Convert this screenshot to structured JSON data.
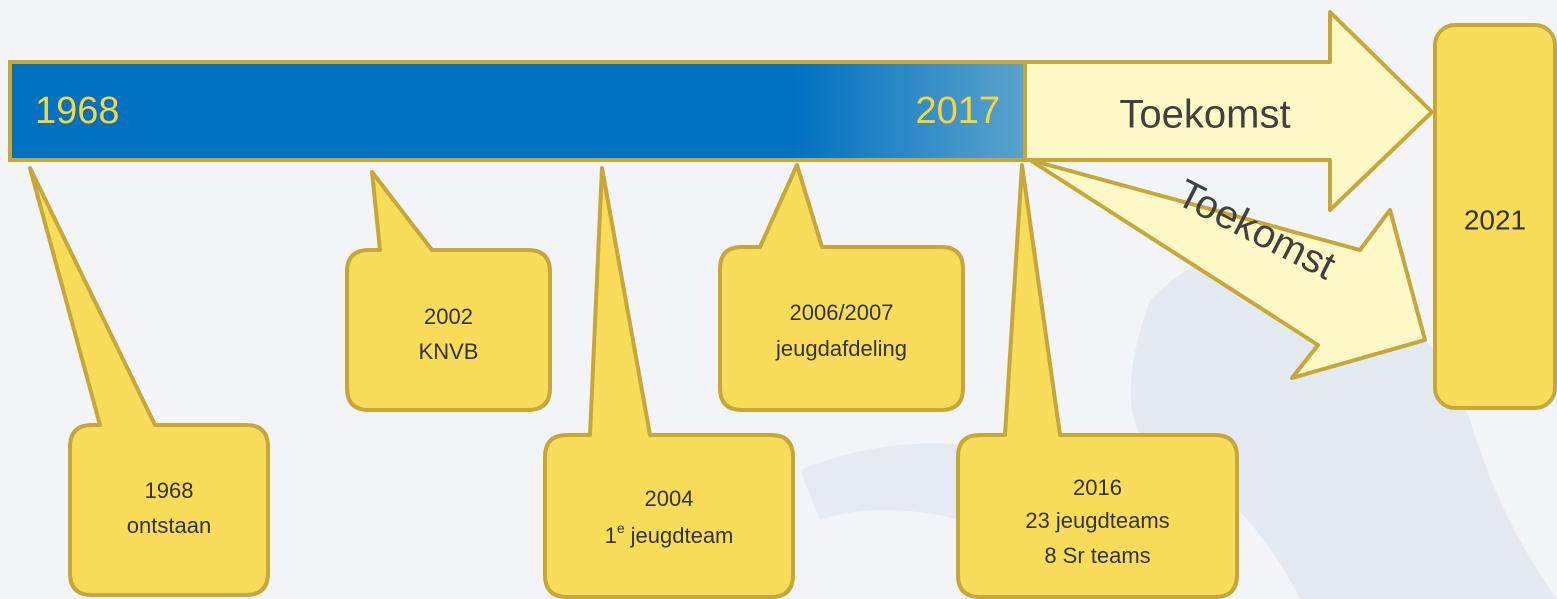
{
  "timeline": {
    "start": "1968",
    "end": "2017"
  },
  "future_arrows": [
    "Toekomst",
    "Toekomst"
  ],
  "target": "2021",
  "callouts": [
    {
      "lines": [
        "1968",
        "ontstaan"
      ]
    },
    {
      "lines": [
        "2002",
        "KNVB"
      ]
    },
    {
      "lines": [
        "2004",
        {
          "number": "1",
          "suffix": "e",
          "text": "jeugdteam"
        }
      ]
    },
    {
      "lines": [
        "2006/2007",
        "jeugdafdeling"
      ]
    },
    {
      "lines": [
        "2016",
        "23 jeugdteams",
        "8 Sr teams"
      ]
    }
  ]
}
